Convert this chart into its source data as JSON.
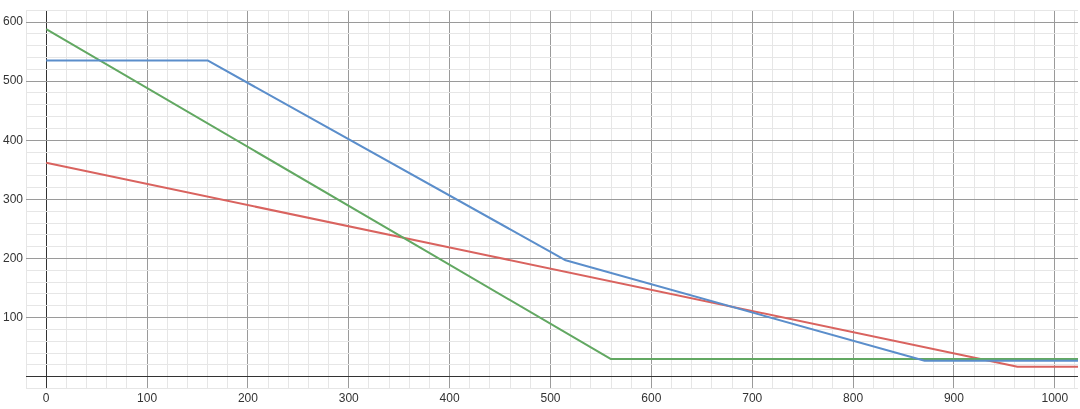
{
  "chart_data": {
    "type": "line",
    "series": [
      {
        "color": "#5b8ecb",
        "x": [
          0,
          160,
          515,
          871,
          1023
        ],
        "values": [
          535,
          535,
          197,
          27,
          27
        ]
      },
      {
        "color": "#62a862",
        "x": [
          0,
          560,
          1023
        ],
        "values": [
          588,
          30,
          30
        ]
      },
      {
        "color": "#d9635f",
        "x": [
          0,
          963,
          1023
        ],
        "values": [
          362,
          17,
          17
        ]
      }
    ],
    "xlim": [
      -20,
      1023
    ],
    "ylim": [
      -20,
      620
    ],
    "xticks": [
      {
        "value": -20,
        "label": null
      },
      0,
      {
        "value": 20,
        "label": null
      },
      {
        "value": 40,
        "label": null
      },
      {
        "value": 60,
        "label": null
      },
      {
        "value": 80,
        "label": null
      },
      100,
      {
        "value": 120,
        "label": null
      },
      {
        "value": 140,
        "label": null
      },
      {
        "value": 160,
        "label": null
      },
      {
        "value": 180,
        "label": null
      },
      200,
      {
        "value": 220,
        "label": null
      },
      {
        "value": 240,
        "label": null
      },
      {
        "value": 260,
        "label": null
      },
      {
        "value": 280,
        "label": null
      },
      300,
      {
        "value": 320,
        "label": null
      },
      {
        "value": 340,
        "label": null
      },
      {
        "value": 360,
        "label": null
      },
      {
        "value": 380,
        "label": null
      },
      400,
      {
        "value": 420,
        "label": null
      },
      {
        "value": 440,
        "label": null
      },
      {
        "value": 460,
        "label": null
      },
      {
        "value": 480,
        "label": null
      },
      500,
      {
        "value": 520,
        "label": null
      },
      {
        "value": 540,
        "label": null
      },
      {
        "value": 560,
        "label": null
      },
      {
        "value": 580,
        "label": null
      },
      600,
      {
        "value": 620,
        "label": null
      },
      {
        "value": 640,
        "label": null
      },
      {
        "value": 660,
        "label": null
      },
      {
        "value": 680,
        "label": null
      },
      700,
      {
        "value": 720,
        "label": null
      },
      {
        "value": 740,
        "label": null
      },
      {
        "value": 760,
        "label": null
      },
      {
        "value": 780,
        "label": null
      },
      800,
      {
        "value": 820,
        "label": null
      },
      {
        "value": 840,
        "label": null
      },
      {
        "value": 860,
        "label": null
      },
      {
        "value": 880,
        "label": null
      },
      900,
      {
        "value": 920,
        "label": null
      },
      {
        "value": 940,
        "label": null
      },
      {
        "value": 960,
        "label": null
      },
      {
        "value": 980,
        "label": null
      },
      1000,
      {
        "value": 1020,
        "label": null
      }
    ],
    "yticks": [
      {
        "value": -20,
        "label": null
      },
      {
        "value": 0,
        "label": null
      },
      {
        "value": 20,
        "label": null
      },
      {
        "value": 40,
        "label": null
      },
      {
        "value": 60,
        "label": null
      },
      {
        "value": 80,
        "label": null
      },
      100,
      {
        "value": 120,
        "label": null
      },
      {
        "value": 140,
        "label": null
      },
      {
        "value": 160,
        "label": null
      },
      {
        "value": 180,
        "label": null
      },
      200,
      {
        "value": 220,
        "label": null
      },
      {
        "value": 240,
        "label": null
      },
      {
        "value": 260,
        "label": null
      },
      {
        "value": 280,
        "label": null
      },
      300,
      {
        "value": 320,
        "label": null
      },
      {
        "value": 340,
        "label": null
      },
      {
        "value": 360,
        "label": null
      },
      {
        "value": 380,
        "label": null
      },
      400,
      {
        "value": 420,
        "label": null
      },
      {
        "value": 440,
        "label": null
      },
      {
        "value": 460,
        "label": null
      },
      {
        "value": 480,
        "label": null
      },
      500,
      {
        "value": 520,
        "label": null
      },
      {
        "value": 540,
        "label": null
      },
      {
        "value": 560,
        "label": null
      },
      {
        "value": 580,
        "label": null
      },
      600,
      {
        "value": 620,
        "label": null
      }
    ],
    "grid": true,
    "legend": false,
    "marker": "none",
    "line_style": "solid"
  }
}
